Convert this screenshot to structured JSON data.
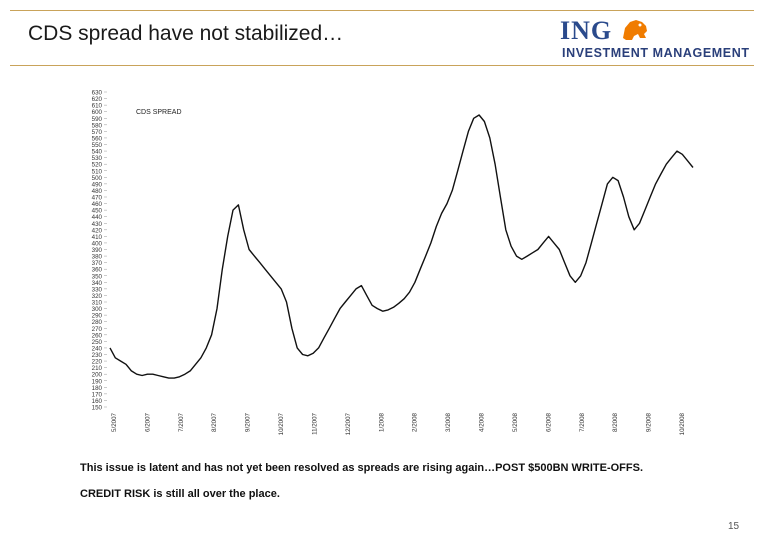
{
  "slide": {
    "title": "CDS spread have not stabilized…",
    "note1": "This issue is latent and has not yet been resolved as spreads are rising again…POST $500BN WRITE-OFFS.",
    "note2": "CREDIT RISK is still all over the place.",
    "page_number": "15"
  },
  "logo": {
    "brand": "ING",
    "subtitle": "INVESTMENT MANAGEMENT",
    "colors": {
      "brand": "#2a4a8c",
      "lion": "#f07c00"
    }
  },
  "colors": {
    "rule": "#c9a35a",
    "line": "#111111"
  },
  "chart_data": {
    "type": "line",
    "title": "CDS SPREAD",
    "xlabel": "",
    "ylabel": "",
    "ylim": [
      150,
      630
    ],
    "yticks": [
      150,
      160,
      170,
      180,
      190,
      200,
      210,
      220,
      230,
      240,
      250,
      260,
      270,
      280,
      290,
      300,
      310,
      320,
      330,
      340,
      350,
      360,
      370,
      380,
      390,
      400,
      410,
      420,
      430,
      440,
      450,
      460,
      470,
      480,
      490,
      500,
      510,
      520,
      530,
      540,
      550,
      560,
      570,
      580,
      590,
      600,
      610,
      620,
      630
    ],
    "x_tick_labels": [
      "5/2007",
      "6/2007",
      "7/2007",
      "8/2007",
      "9/2007",
      "10/2007",
      "11/2007",
      "12/2007",
      "1/2008",
      "2/2008",
      "3/2008",
      "4/2008",
      "5/2008",
      "6/2008",
      "7/2008",
      "8/2008",
      "9/2008",
      "10/2008"
    ],
    "series": [
      {
        "name": "CDS SPREAD",
        "values": [
          240,
          225,
          220,
          215,
          205,
          200,
          198,
          200,
          200,
          198,
          196,
          194,
          194,
          196,
          200,
          205,
          215,
          225,
          240,
          260,
          300,
          360,
          410,
          450,
          458,
          420,
          390,
          380,
          370,
          360,
          350,
          340,
          330,
          310,
          270,
          240,
          230,
          228,
          232,
          240,
          255,
          270,
          285,
          300,
          310,
          320,
          330,
          335,
          320,
          305,
          300,
          296,
          298,
          302,
          308,
          315,
          325,
          340,
          360,
          380,
          400,
          425,
          445,
          460,
          480,
          510,
          540,
          570,
          590,
          595,
          585,
          560,
          520,
          470,
          420,
          395,
          380,
          375,
          380,
          385,
          390,
          400,
          410,
          400,
          390,
          370,
          350,
          340,
          350,
          370,
          400,
          430,
          460,
          490,
          500,
          495,
          470,
          440,
          420,
          430,
          450,
          470,
          490,
          505,
          520,
          530,
          540,
          535,
          525,
          515
        ]
      }
    ]
  }
}
